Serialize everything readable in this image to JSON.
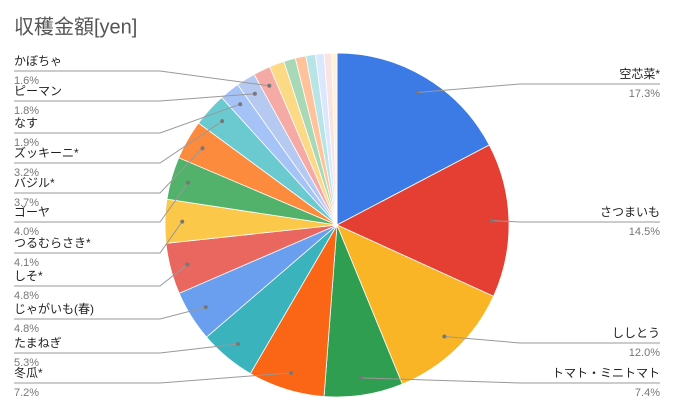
{
  "chart_data": {
    "type": "pie",
    "title": "収穫金額[yen]",
    "categories": [
      "空芯菜*",
      "さつまいも",
      "ししとう",
      "トマト・ミニトマト",
      "冬瓜*",
      "たまねぎ",
      "じゃがいも(春)",
      "しそ*",
      "つるむらさき*",
      "ゴーヤ",
      "バジル*",
      "ズッキーニ*",
      "なす",
      "ピーマン",
      "かぼちゃ",
      null,
      null,
      null,
      null,
      null,
      null,
      null
    ],
    "values": [
      17.3,
      14.5,
      12.0,
      7.4,
      7.2,
      5.3,
      4.8,
      4.8,
      4.1,
      4.0,
      3.7,
      3.2,
      1.9,
      1.8,
      1.6,
      1.4,
      1.1,
      1.0,
      0.9,
      0.8,
      0.7,
      0.5
    ],
    "value_labels": [
      "17.3%",
      "14.5%",
      "12.0%",
      "7.4%",
      "7.2%",
      "5.3%",
      "4.8%",
      "4.8%",
      "4.1%",
      "4.0%",
      "3.7%",
      "3.2%",
      "1.9%",
      "1.8%",
      "1.6%",
      null,
      null,
      null,
      null,
      null,
      null,
      null
    ],
    "colors": [
      "#3c7be6",
      "#e53f33",
      "#f9b526",
      "#2f9e50",
      "#fb6516",
      "#3bb3bd",
      "#6a9ff0",
      "#e9675f",
      "#fbc84a",
      "#52b26b",
      "#fd8b3e",
      "#6bcad0",
      "#a5c3f7",
      "#b5c9f1",
      "#f5aaa5",
      "#fcd985",
      "#a8d8b5",
      "#ffc29a",
      "#b7e4e7",
      "#dbe7fc",
      "#fbe3e1",
      "#fef3d8"
    ]
  }
}
